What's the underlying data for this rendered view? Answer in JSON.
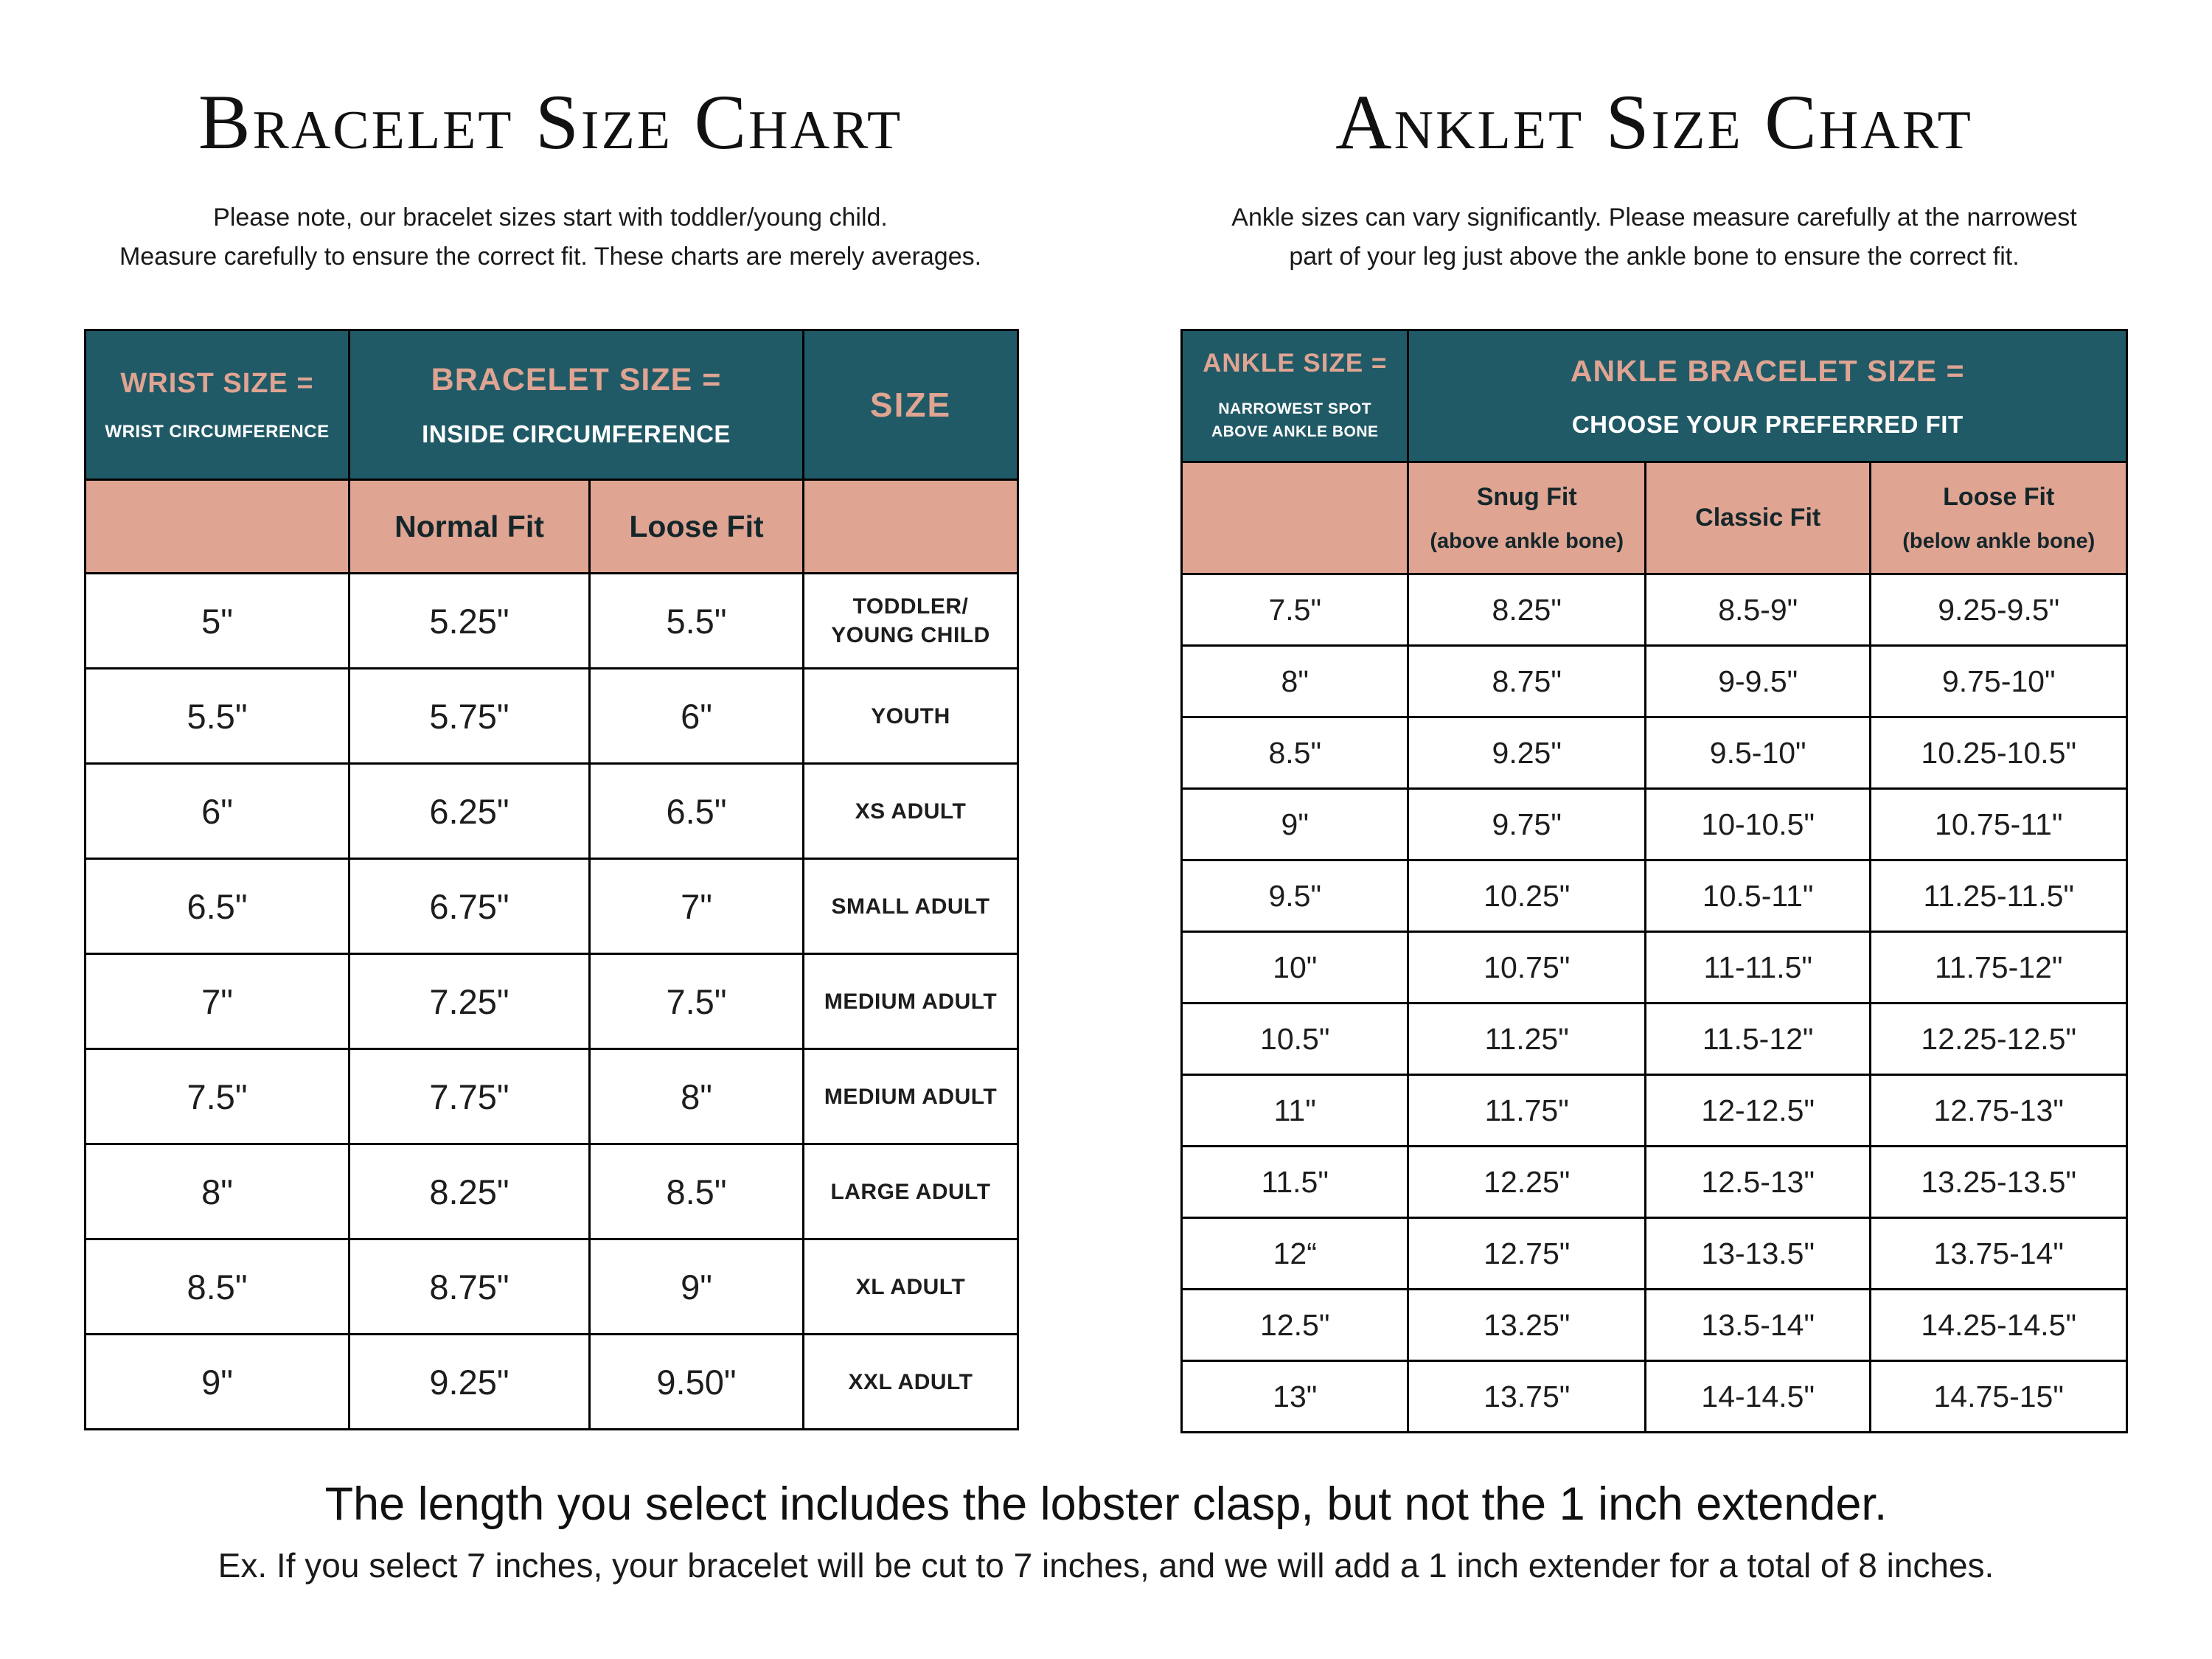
{
  "colors": {
    "teal": "#215a67",
    "salmon": "#dfa492",
    "background": "#ffffff"
  },
  "bracelet": {
    "title": "Bracelet Size Chart",
    "subtitle": "Please note, our bracelet sizes start with toddler/young child.\nMeasure carefully to ensure the correct fit. These charts are merely averages.",
    "header": {
      "wrist_title": "WRIST SIZE =",
      "wrist_sub": "WRIST CIRCUMFERENCE",
      "bracelet_title": "BRACELET SIZE =",
      "bracelet_sub": "INSIDE CIRCUMFERENCE",
      "size_title": "SIZE",
      "normal_fit": "Normal Fit",
      "loose_fit": "Loose Fit"
    },
    "rows": [
      [
        "5\"",
        "5.25\"",
        "5.5\"",
        "TODDLER/\nYOUNG CHILD"
      ],
      [
        "5.5\"",
        "5.75\"",
        "6\"",
        "YOUTH"
      ],
      [
        "6\"",
        "6.25\"",
        "6.5\"",
        "XS ADULT"
      ],
      [
        "6.5\"",
        "6.75\"",
        "7\"",
        "SMALL ADULT"
      ],
      [
        "7\"",
        "7.25\"",
        "7.5\"",
        "MEDIUM ADULT"
      ],
      [
        "7.5\"",
        "7.75\"",
        "8\"",
        "MEDIUM ADULT"
      ],
      [
        "8\"",
        "8.25\"",
        "8.5\"",
        "LARGE ADULT"
      ],
      [
        "8.5\"",
        "8.75\"",
        "9\"",
        "XL ADULT"
      ],
      [
        "9\"",
        "9.25\"",
        "9.50\"",
        "XXL ADULT"
      ]
    ]
  },
  "anklet": {
    "title": "Anklet Size Chart",
    "subtitle": "Ankle sizes can vary significantly. Please measure carefully at the narrowest\npart of your leg just above the ankle bone to ensure the correct fit.",
    "header": {
      "ankle_title": "ANKLE SIZE =",
      "ankle_sub": "NARROWEST SPOT\nABOVE ANKLE BONE",
      "bracelet_title": "ANKLE BRACELET SIZE =",
      "bracelet_sub": "CHOOSE YOUR PREFERRED FIT",
      "snug_title": "Snug Fit",
      "snug_sub": "(above ankle bone)",
      "classic_title": "Classic Fit",
      "loose_title": "Loose Fit",
      "loose_sub": "(below ankle bone)"
    },
    "rows": [
      [
        "7.5\"",
        "8.25\"",
        "8.5-9\"",
        "9.25-9.5\""
      ],
      [
        "8\"",
        "8.75\"",
        "9-9.5\"",
        "9.75-10\""
      ],
      [
        "8.5\"",
        "9.25\"",
        "9.5-10\"",
        "10.25-10.5\""
      ],
      [
        "9\"",
        "9.75\"",
        "10-10.5\"",
        "10.75-11\""
      ],
      [
        "9.5\"",
        "10.25\"",
        "10.5-11\"",
        "11.25-11.5\""
      ],
      [
        "10\"",
        "10.75\"",
        "11-11.5\"",
        "11.75-12\""
      ],
      [
        "10.5\"",
        "11.25\"",
        "11.5-12\"",
        "12.25-12.5\""
      ],
      [
        "11\"",
        "11.75\"",
        "12-12.5\"",
        "12.75-13\""
      ],
      [
        "11.5\"",
        "12.25\"",
        "12.5-13\"",
        "13.25-13.5\""
      ],
      [
        "12“",
        "12.75\"",
        "13-13.5\"",
        "13.75-14\""
      ],
      [
        "12.5\"",
        "13.25\"",
        "13.5-14\"",
        "14.25-14.5\""
      ],
      [
        "13\"",
        "13.75\"",
        "14-14.5\"",
        "14.75-15\""
      ]
    ]
  },
  "footer": {
    "primary": "The length you select includes the lobster clasp, but not the 1 inch extender.",
    "secondary": "Ex. If you select 7 inches, your bracelet will be cut to 7 inches, and we will add a 1 inch extender for a total of 8 inches."
  }
}
